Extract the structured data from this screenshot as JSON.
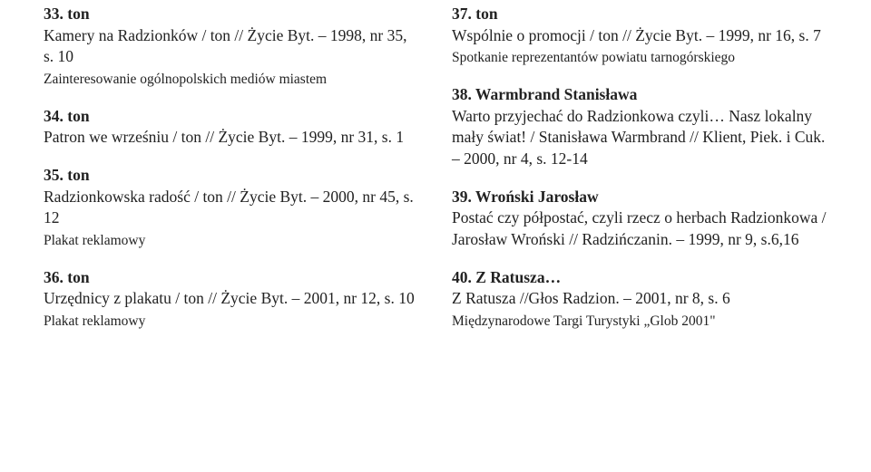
{
  "text_color": "#222222",
  "background_color": "#ffffff",
  "left": [
    {
      "head": "33. ton",
      "body": "Kamery na Radzionków / ton // Życie Byt. – 1998, nr 35, s. 10",
      "note": "Zainteresowanie ogólnopolskich mediów miastem"
    },
    {
      "head": "34. ton",
      "body": "Patron we wrześniu / ton // Życie Byt. – 1999, nr 31, s. 1"
    },
    {
      "head": "35. ton",
      "body": "Radzionkowska radość / ton // Życie Byt. – 2000, nr 45, s. 12",
      "note": "Plakat reklamowy"
    },
    {
      "head": "36. ton",
      "body": "Urzędnicy z plakatu / ton // Życie Byt. – 2001, nr 12, s. 10",
      "note": "Plakat reklamowy"
    }
  ],
  "right": [
    {
      "head": "37. ton",
      "body": "Wspólnie o promocji / ton // Życie Byt. – 1999, nr 16, s. 7",
      "note": "Spotkanie reprezentantów powiatu tarnogórskiego"
    },
    {
      "head": "38. Warmbrand Stanisława",
      "body": "Warto przyjechać do Radzionkowa czyli… Nasz lokalny mały świat! / Stanisława Warmbrand // Klient, Piek. i Cuk. – 2000, nr 4, s. 12-14"
    },
    {
      "head": "39. Wroński Jarosław",
      "body": "Postać czy półpostać, czyli rzecz o herbach Radzionkowa / Jarosław Wroński // Radzińczanin. – 1999, nr 9, s.6,16"
    },
    {
      "head": "40. Z Ratusza…",
      "body": "Z Ratusza //Głos Radzion. – 2001, nr 8, s. 6",
      "note": "Międzynarodowe Targi Turystyki „Glob 2001\""
    }
  ]
}
